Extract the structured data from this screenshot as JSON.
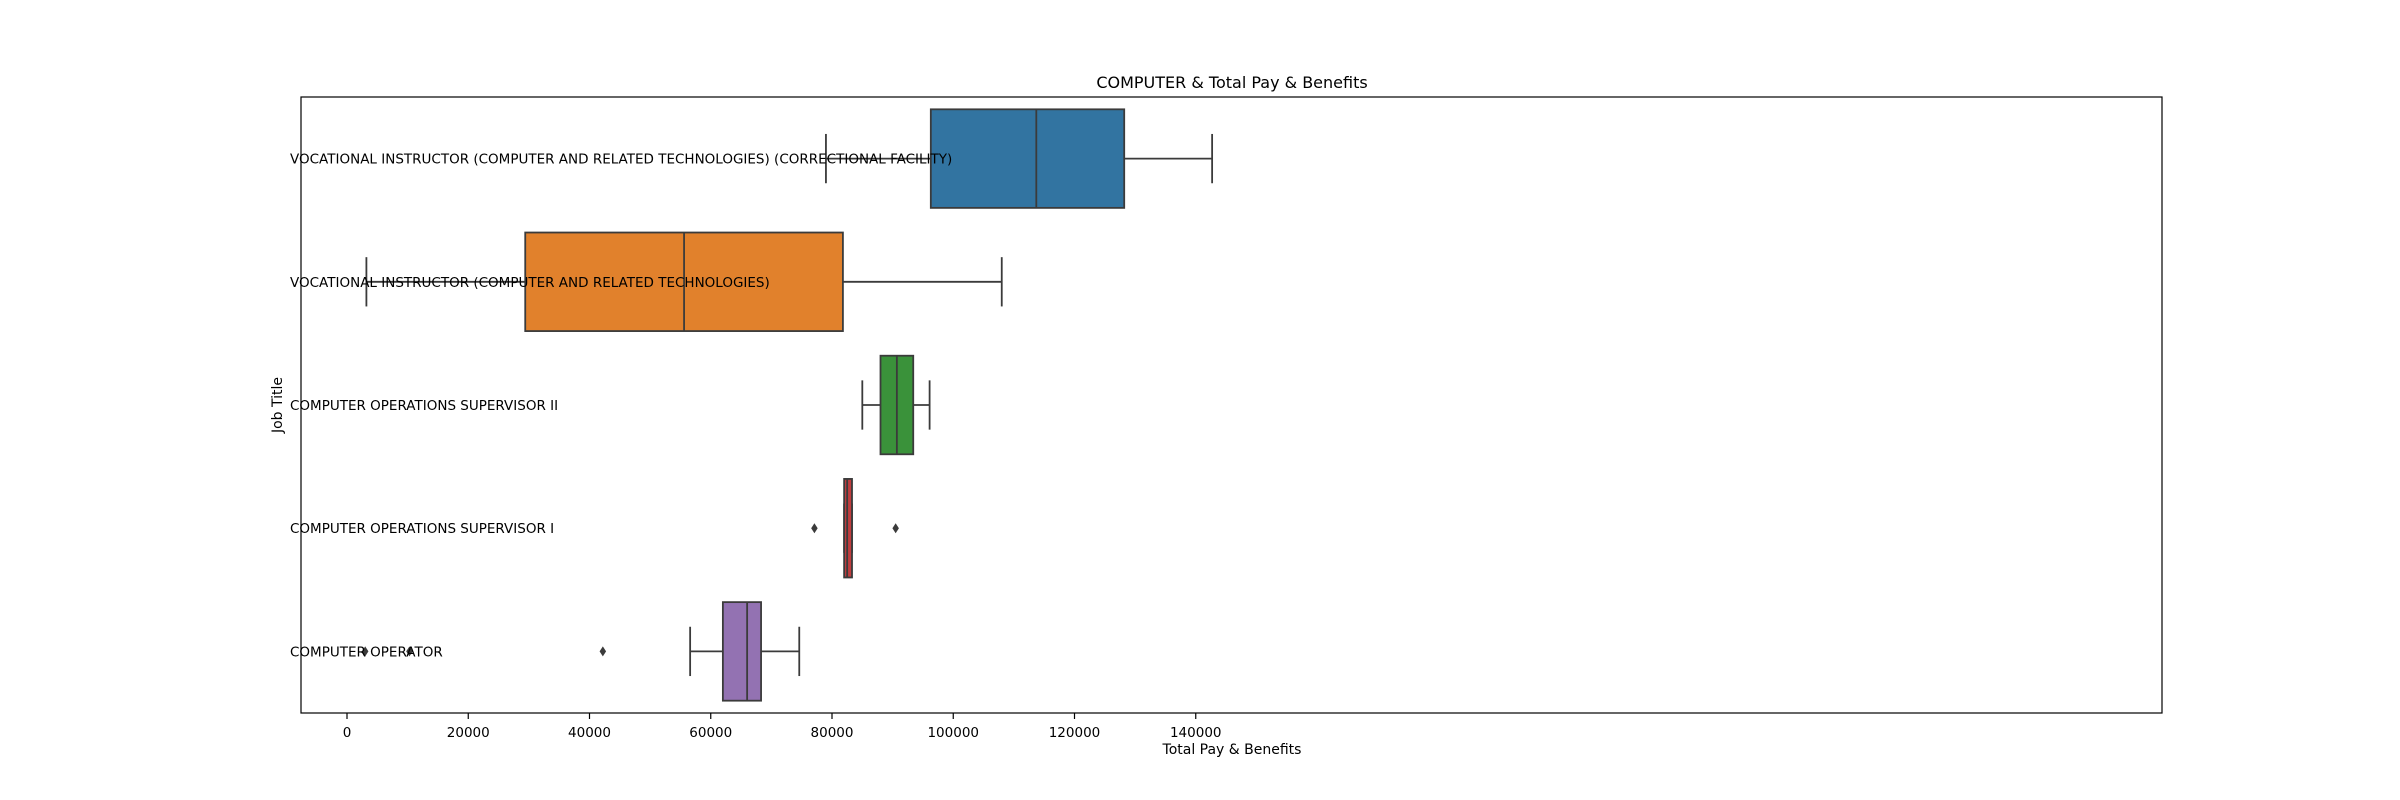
{
  "chart_data": {
    "type": "box",
    "orientation": "horizontal",
    "title": "COMPUTER & Total Pay & Benefits",
    "xlabel": "Total Pay & Benefits",
    "ylabel": "Job Title",
    "xlim": [
      -4000,
      150000
    ],
    "xticks": [
      0,
      20000,
      40000,
      60000,
      80000,
      100000,
      120000,
      140000
    ],
    "xtick_labels": [
      "0",
      "20000",
      "40000",
      "60000",
      "80000",
      "100000",
      "120000",
      "140000"
    ],
    "grid": false,
    "series": [
      {
        "category": "VOCATIONAL INSTRUCTOR (COMPUTER AND RELATED TECHNOLOGIES) (CORRECTIONAL FACILITY)",
        "whisker_low": 79000,
        "q1": 96300,
        "median": 113700,
        "q3": 128200,
        "whisker_high": 142700,
        "outliers": [],
        "color": "#3274a1"
      },
      {
        "category": "VOCATIONAL INSTRUCTOR (COMPUTER AND RELATED TECHNOLOGIES)",
        "whisker_low": 3200,
        "q1": 29400,
        "median": 55600,
        "q3": 81800,
        "whisker_high": 108000,
        "outliers": [],
        "color": "#e1812c"
      },
      {
        "category": "COMPUTER OPERATIONS SUPERVISOR II",
        "whisker_low": 85000,
        "q1": 88000,
        "median": 90700,
        "q3": 93400,
        "whisker_high": 96100,
        "outliers": [],
        "color": "#3a923a"
      },
      {
        "category": "COMPUTER OPERATIONS SUPERVISOR I",
        "whisker_low": 82000,
        "q1": 82000,
        "median": 82500,
        "q3": 83300,
        "whisker_high": 83300,
        "outliers": [
          77100,
          90500
        ],
        "color": "#c03d3e"
      },
      {
        "category": "COMPUTER OPERATOR",
        "whisker_low": 56600,
        "q1": 62000,
        "median": 66000,
        "q3": 68300,
        "whisker_high": 74600,
        "outliers": [
          3000,
          10300,
          42200
        ],
        "color": "#9372b2"
      }
    ]
  }
}
